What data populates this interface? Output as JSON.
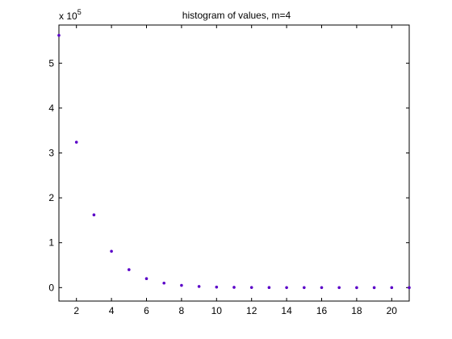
{
  "chart_data": {
    "type": "scatter",
    "title": "histogram of values, m=4",
    "xlabel": "",
    "ylabel": "",
    "y_multiplier_base": "x 10",
    "y_multiplier_exponent": "5",
    "xlim": [
      1,
      21
    ],
    "ylim": [
      -0.3,
      5.85
    ],
    "grid": false,
    "x_ticks": [
      2,
      4,
      6,
      8,
      10,
      12,
      14,
      16,
      18,
      20
    ],
    "y_ticks": [
      0,
      1,
      2,
      3,
      4,
      5
    ],
    "x_tick_labels": [
      "2",
      "4",
      "6",
      "8",
      "10",
      "12",
      "14",
      "16",
      "18",
      "20"
    ],
    "y_tick_labels": [
      "0",
      "1",
      "2",
      "3",
      "4",
      "5"
    ],
    "marker_color": "#5a00c8",
    "series": [
      {
        "x": [
          1,
          2,
          3,
          4,
          5,
          6,
          7,
          8,
          9,
          10,
          11,
          12,
          13,
          14,
          15,
          16,
          17,
          18,
          19,
          20,
          21
        ],
        "y": [
          5.62,
          3.24,
          1.62,
          0.81,
          0.4,
          0.2,
          0.1,
          0.05,
          0.025,
          0.012,
          0.006,
          0.003,
          0.0015,
          0.0008,
          0.0004,
          0.0002,
          0.0001,
          5e-05,
          3e-05,
          1e-05,
          5e-06
        ]
      }
    ]
  }
}
